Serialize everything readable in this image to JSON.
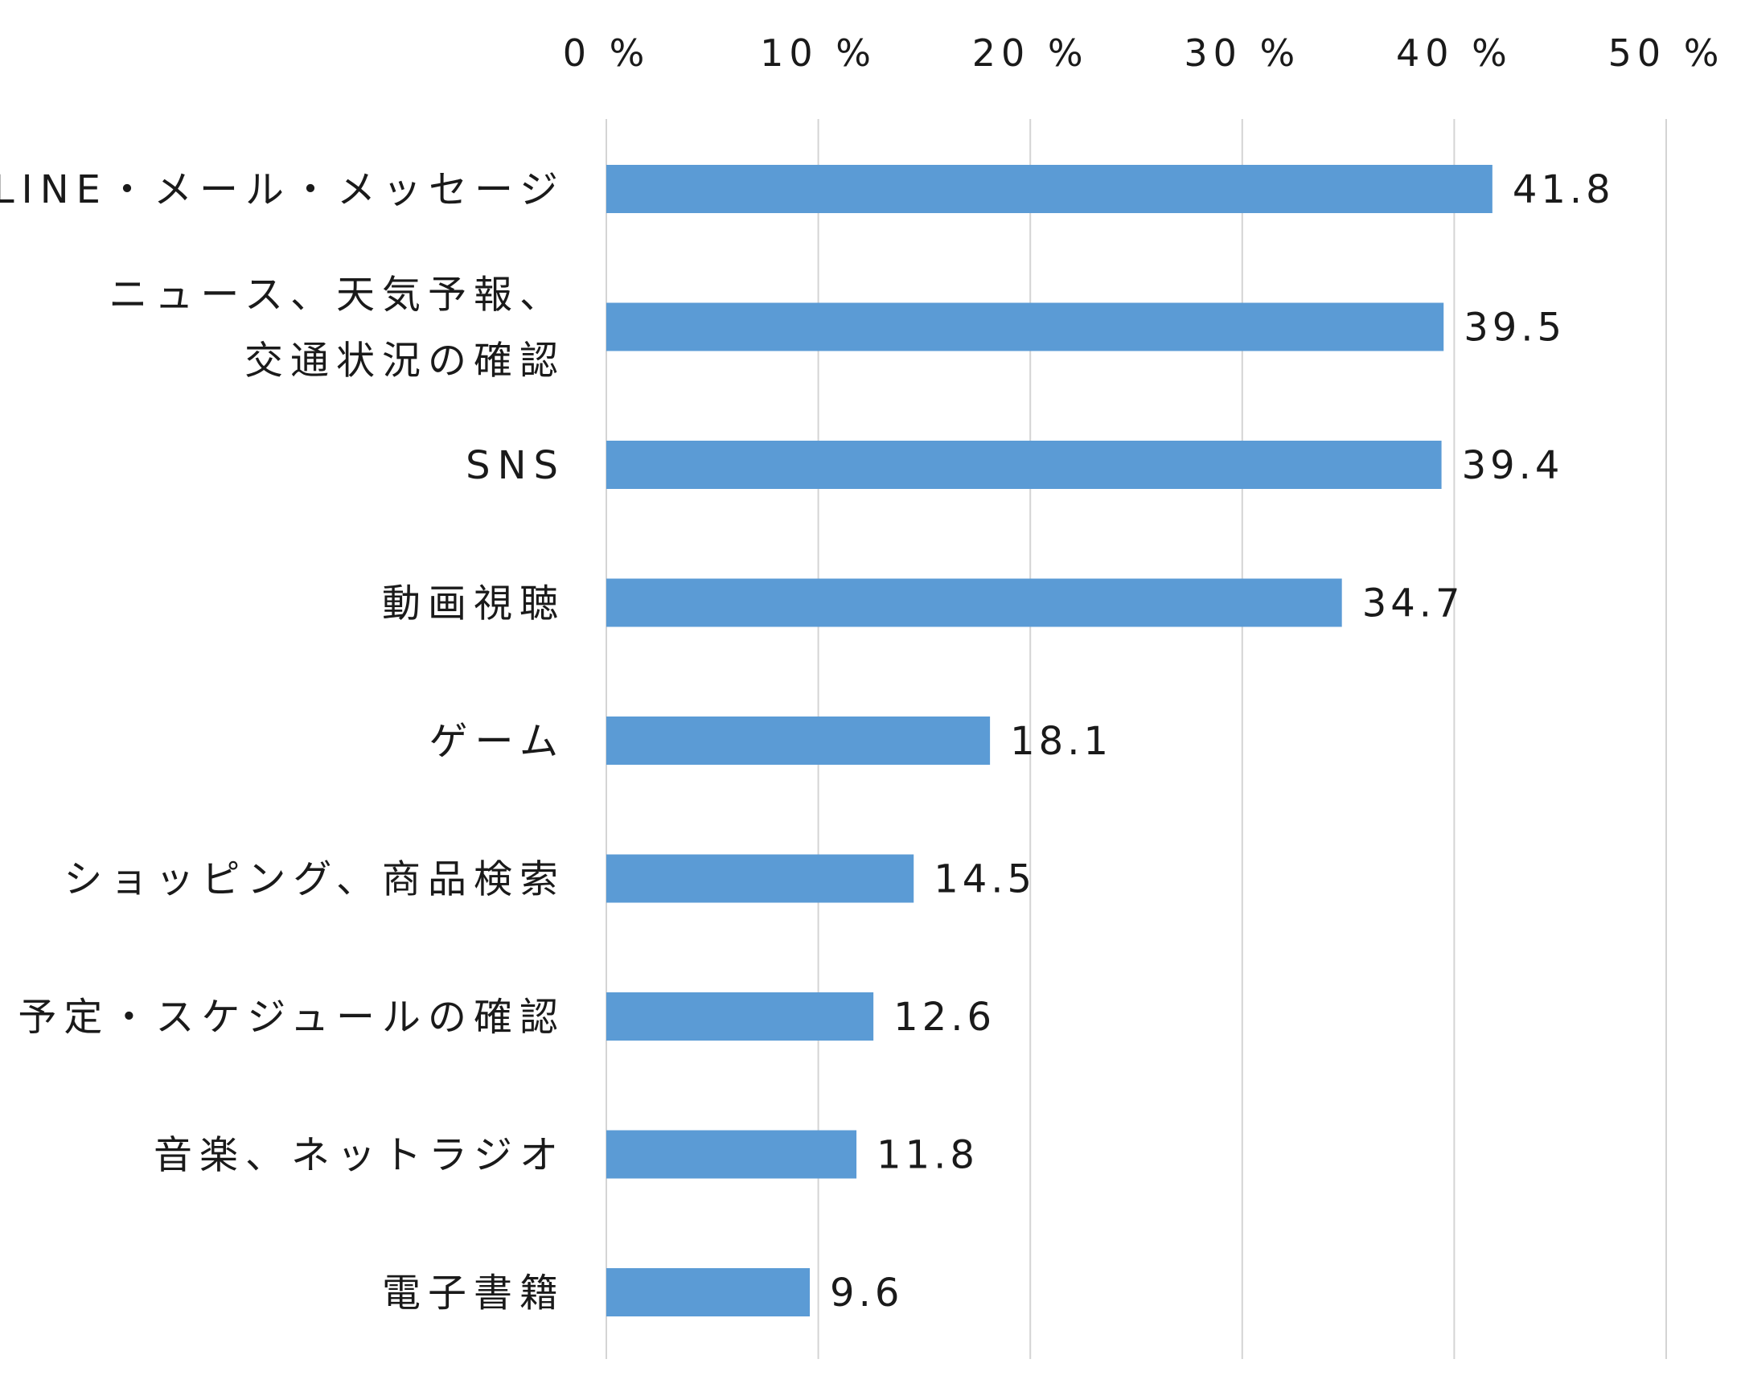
{
  "chart_data": {
    "type": "bar",
    "orientation": "horizontal",
    "categories": [
      [
        "LINE・メール・メッセージ"
      ],
      [
        "ニュース、天気予報、",
        "交通状況の確認"
      ],
      [
        "SNS"
      ],
      [
        "動画視聴"
      ],
      [
        "ゲーム"
      ],
      [
        "ショッピング、商品検索"
      ],
      [
        "予定・スケジュールの確認"
      ],
      [
        "音楽、ネットラジオ"
      ],
      [
        "電子書籍"
      ]
    ],
    "values": [
      41.8,
      39.5,
      39.4,
      34.7,
      18.1,
      14.5,
      12.6,
      11.8,
      9.6
    ],
    "value_labels": [
      "41.8",
      "39.5",
      "39.4",
      "34.7",
      "18.1",
      "14.5",
      "12.6",
      "11.8",
      "9.6"
    ],
    "xlim": [
      0,
      50
    ],
    "x_ticks": [
      0,
      10,
      20,
      30,
      40,
      50
    ],
    "x_tick_labels": [
      "0 %",
      "10 %",
      "20 %",
      "30 %",
      "40 %",
      "50 %"
    ],
    "x_axis_position": "top",
    "grid": true,
    "legend": "none",
    "title": "",
    "xlabel": "",
    "ylabel": "",
    "colors": {
      "bar": "#5b9bd5",
      "grid": "#d4d4d4",
      "text": "#1a1a1a"
    }
  }
}
